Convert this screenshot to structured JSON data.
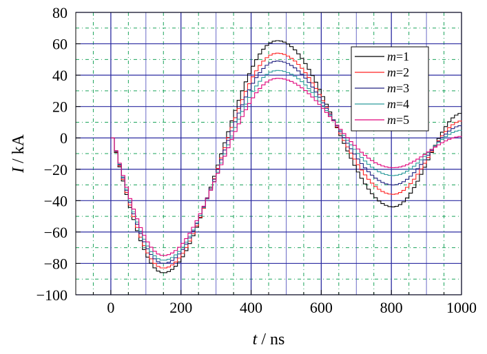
{
  "chart_data": {
    "type": "line",
    "xlabel": {
      "var": "t",
      "sep": " / ",
      "unit": "ns"
    },
    "ylabel": {
      "var": "I",
      "sep": " / ",
      "unit": "kA"
    },
    "xlim": [
      -100,
      1000
    ],
    "ylim": [
      -100,
      80
    ],
    "x_ticks": [
      0,
      200,
      400,
      600,
      800,
      1000
    ],
    "y_ticks": [
      -100,
      -80,
      -60,
      -40,
      -20,
      0,
      20,
      40,
      60,
      80
    ],
    "x_tick_labels": [
      "0",
      "200",
      "400",
      "600",
      "800",
      "1000"
    ],
    "y_tick_labels": [
      "−100",
      "−80",
      "−60",
      "−40",
      "−20",
      "0",
      "20",
      "40",
      "60",
      "80"
    ],
    "grid": {
      "major": true,
      "minor": true,
      "x_minor_step": 50,
      "y_minor_step": 10
    },
    "legend_position": "top-right",
    "series": [
      {
        "name": "m=1",
        "var": "m",
        "eq": "=1",
        "color": "#000000",
        "amplitude": [
          86,
          62,
          44,
          16
        ],
        "peak_times": [
          145,
          470,
          800,
          1000
        ],
        "start_offset": 0
      },
      {
        "name": "m=2",
        "var": "m",
        "eq": "=2",
        "color": "#ff2020",
        "amplitude": [
          83,
          54,
          36,
          11
        ],
        "peak_times": [
          145,
          470,
          800,
          1000
        ],
        "start_offset": 4
      },
      {
        "name": "m=3",
        "var": "m",
        "eq": "=3",
        "color": "#202080",
        "amplitude": [
          80,
          49,
          30,
          8
        ],
        "peak_times": [
          145,
          470,
          800,
          1000
        ],
        "start_offset": 8
      },
      {
        "name": "m=4",
        "var": "m",
        "eq": "=4",
        "color": "#2a9a9a",
        "amplitude": [
          78,
          43,
          24,
          5
        ],
        "peak_times": [
          145,
          470,
          800,
          1000
        ],
        "start_offset": 12
      },
      {
        "name": "m=5",
        "var": "m",
        "eq": "=5",
        "color": "#e0007a",
        "amplitude": [
          75,
          38,
          19,
          1
        ],
        "peak_times": [
          145,
          470,
          800,
          1000
        ],
        "start_offset": 16
      }
    ]
  }
}
